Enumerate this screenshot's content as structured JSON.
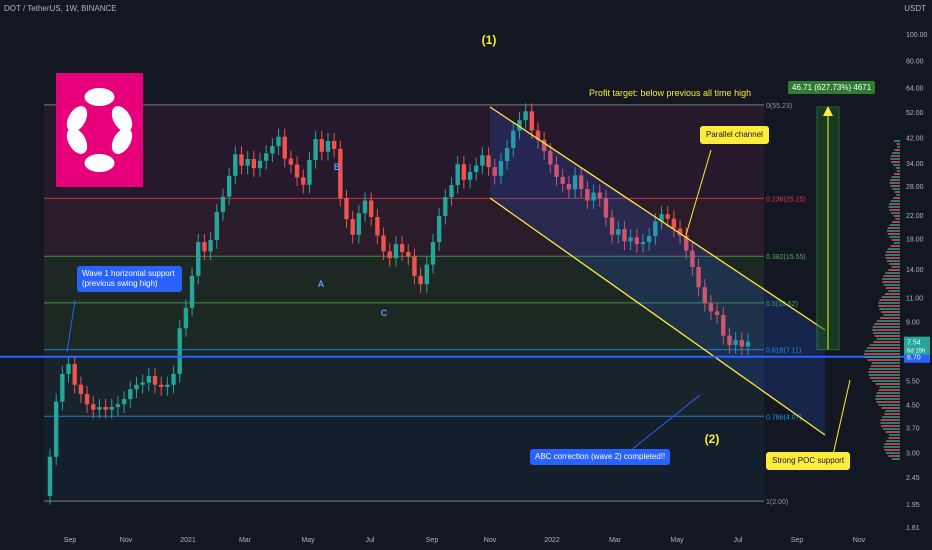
{
  "header": {
    "symbol": "DOT / TetherUS, 1W, BINANCE",
    "currency": "USDT"
  },
  "annotations": {
    "profit_target": "Profit target: below previous all time high",
    "parallel_channel": "Parallel channel",
    "wave1_support": "Wave 1 horizontal support\n(previous swing high)",
    "abc_correction": "ABC correction (wave 2) completed!!",
    "poc_support": "Strong POC support",
    "target_badge": "46.71 (627.73%) 4671"
  },
  "colors": {
    "bg": "#131722",
    "up": "#26a69a",
    "down": "#ef5350",
    "yellow": "#ffeb3b",
    "blue": "#2962ff",
    "brand": "#e6007a"
  },
  "chart_data": {
    "type": "candlestick",
    "title": "DOT / TetherUS, 1W, BINANCE",
    "y_scale": "log",
    "ylim": [
      1.61,
      100.0
    ],
    "y_ticks": [
      "100.00",
      "80.00",
      "64.00",
      "52.00",
      "42.00",
      "34.00",
      "28.00",
      "22.00",
      "18.00",
      "14.00",
      "11.00",
      "9.00",
      "6.70",
      "5.50",
      "4.50",
      "3.70",
      "3.00",
      "2.45",
      "1.95",
      "1.61"
    ],
    "x_ticks": [
      "Sep",
      "Nov",
      "2021",
      "Mar",
      "May",
      "Jul",
      "Sep",
      "Nov",
      "2022",
      "Mar",
      "May",
      "Jul",
      "Sep",
      "Nov"
    ],
    "current_price": "7.54",
    "countdown": "6d 15h",
    "support_level": "6.70",
    "fib_levels": [
      {
        "label": "0(55.23)",
        "value": 55.23
      },
      {
        "label": "0.236(25.25)",
        "value": 25.25
      },
      {
        "label": "0.382(15.55)",
        "value": 15.55
      },
      {
        "label": "0.5(10.52)",
        "value": 10.52
      },
      {
        "label": "0.618(7.11)",
        "value": 7.11
      },
      {
        "label": "0.786(4.07)",
        "value": 4.07
      },
      {
        "label": "1(2.00)",
        "value": 2.0
      }
    ],
    "close_series": [
      2.9,
      4.6,
      5.8,
      6.3,
      5.3,
      4.9,
      4.5,
      4.3,
      4.4,
      4.3,
      4.4,
      4.5,
      4.7,
      5.1,
      5.3,
      5.4,
      5.7,
      5.3,
      5.2,
      5.3,
      5.8,
      8.5,
      10.1,
      13.2,
      17.5,
      16.2,
      17.8,
      22.5,
      25.6,
      30.5,
      36.5,
      33.2,
      35.1,
      32.5,
      34.6,
      36.8,
      39.1,
      42.3,
      35.2,
      33.5,
      30.1,
      28.3,
      34.8,
      41.5,
      37.3,
      40.8,
      38.2,
      25.3,
      21.2,
      18.6,
      22.3,
      24.8,
      21.6,
      18.5,
      16.2,
      15.3,
      17.2,
      16.1,
      15.5,
      13.2,
      12.3,
      14.5,
      17.5,
      21.8,
      25.5,
      28.2,
      33.6,
      29.5,
      31.5,
      33.2,
      36.2,
      32.8,
      30.5,
      34.5,
      38.5,
      44.5,
      48.6,
      52.3,
      44.6,
      41.2,
      37.5,
      33.5,
      30.2,
      28.5,
      27.2,
      30.6,
      27.3,
      24.8,
      26.5,
      25.3,
      21.5,
      18.6,
      19.5,
      17.6,
      18.2,
      17.2,
      17.5,
      18.4,
      20.8,
      22.1,
      21.3,
      19.6,
      18.5,
      16.3,
      14.2,
      12.0,
      10.5,
      9.8,
      9.5,
      8.0,
      7.4,
      7.7,
      7.3,
      7.6
    ],
    "wave_labels": [
      {
        "text": "(1)",
        "color": "yellow"
      },
      {
        "text": "(2)",
        "color": "yellow"
      },
      {
        "text": "A",
        "color": "blue"
      },
      {
        "text": "B",
        "color": "blue"
      },
      {
        "text": "C",
        "color": "blue"
      }
    ]
  }
}
